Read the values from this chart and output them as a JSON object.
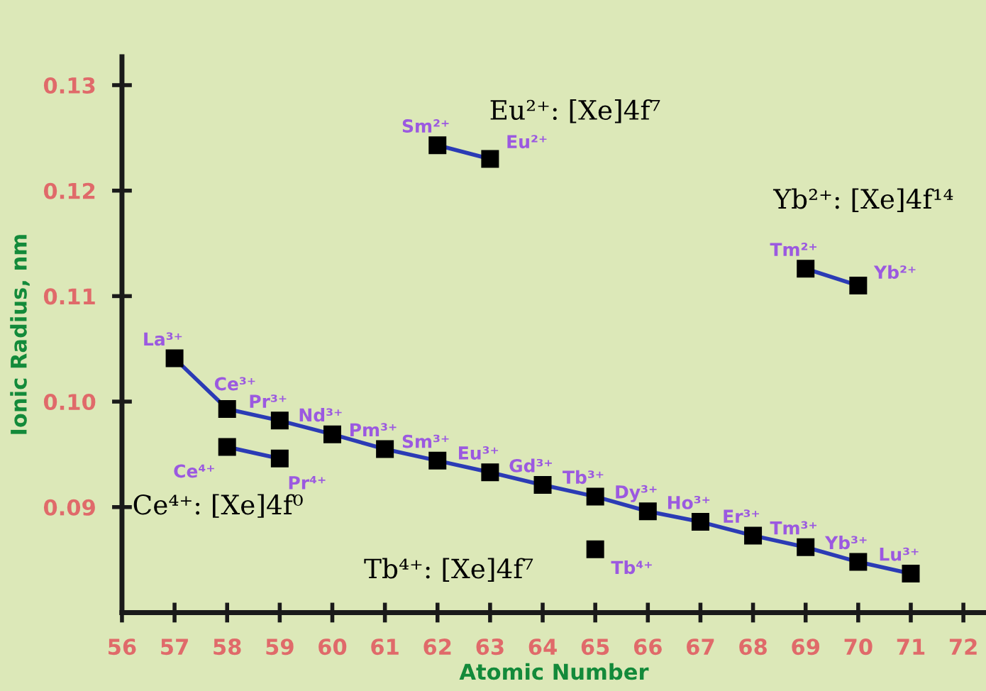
{
  "chart_data": {
    "type": "line",
    "xlabel": "Atomic Number",
    "ylabel": "Ionic Radius, nm",
    "xlim": [
      56,
      72.43
    ],
    "xticks": [
      56,
      57,
      58,
      59,
      60,
      61,
      62,
      63,
      64,
      65,
      66,
      67,
      68,
      69,
      70,
      71,
      72
    ],
    "ylim": [
      0.08,
      0.1327
    ],
    "yticks": [
      {
        "value": 0.09,
        "label": "0.09"
      },
      {
        "value": 0.1,
        "label": "0.10"
      },
      {
        "value": 0.11,
        "label": "0.11"
      },
      {
        "value": 0.12,
        "label": "0.12"
      },
      {
        "value": 0.13,
        "label": "0.13"
      }
    ],
    "grid": false,
    "legend": false,
    "marker": "square",
    "line_style": "solid",
    "series": [
      {
        "color": "#2b3bb5",
        "x": [
          57,
          58,
          59,
          60,
          61,
          62,
          63,
          64,
          65,
          66,
          67,
          68,
          69,
          70,
          71
        ],
        "values": [
          0.1041,
          0.0993,
          0.0982,
          0.0969,
          0.0955,
          0.0944,
          0.0933,
          0.0921,
          0.091,
          0.0896,
          0.0886,
          0.0873,
          0.0862,
          0.0848,
          0.0837
        ]
      },
      {
        "color": "#2b3bb5",
        "x": [
          58,
          59
        ],
        "values": [
          0.0957,
          0.0946
        ]
      },
      {
        "color": "#000000",
        "x": [
          65
        ],
        "values": [
          0.086
        ]
      },
      {
        "color": "#2b3bb5",
        "x": [
          62,
          63
        ],
        "values": [
          0.1243,
          0.123
        ]
      },
      {
        "color": "#2b3bb5",
        "x": [
          69,
          70
        ],
        "values": [
          0.1126,
          0.111
        ]
      }
    ],
    "annotations": [
      {
        "text": "La³⁺",
        "x": 57,
        "y": 0.1041
      },
      {
        "text": "Ce³⁺",
        "x": 58,
        "y": 0.0993
      },
      {
        "text": "Pr³⁺",
        "x": 59,
        "y": 0.0982
      },
      {
        "text": "Nd³⁺",
        "x": 60,
        "y": 0.0969
      },
      {
        "text": "Pm³⁺",
        "x": 61,
        "y": 0.0955
      },
      {
        "text": "Sm³⁺",
        "x": 62,
        "y": 0.0944
      },
      {
        "text": "Eu³⁺",
        "x": 63,
        "y": 0.0933
      },
      {
        "text": "Gd³⁺",
        "x": 64,
        "y": 0.0921
      },
      {
        "text": "Tb³⁺",
        "x": 65,
        "y": 0.091
      },
      {
        "text": "Dy³⁺",
        "x": 66,
        "y": 0.0896
      },
      {
        "text": "Ho³⁺",
        "x": 67,
        "y": 0.0886
      },
      {
        "text": "Er³⁺",
        "x": 68,
        "y": 0.0873
      },
      {
        "text": "Tm³⁺",
        "x": 69,
        "y": 0.0862
      },
      {
        "text": "Yb³⁺",
        "x": 70,
        "y": 0.0848
      },
      {
        "text": "Lu³⁺",
        "x": 71,
        "y": 0.0837
      },
      {
        "text": "Ce⁴⁺",
        "x": 58,
        "y": 0.0957
      },
      {
        "text": "Pr⁴⁺",
        "x": 59,
        "y": 0.0946
      },
      {
        "text": "Tb⁴⁺",
        "x": 65,
        "y": 0.086
      },
      {
        "text": "Sm²⁺",
        "x": 62,
        "y": 0.1243
      },
      {
        "text": "Eu²⁺",
        "x": 63,
        "y": 0.123
      },
      {
        "text": "Tm²⁺",
        "x": 69,
        "y": 0.1126
      },
      {
        "text": "Yb²⁺",
        "x": 70,
        "y": 0.111
      },
      "Eu²⁺: [Xe]4f⁷",
      "Yb²⁺: [Xe]4f¹⁴",
      "Ce⁴⁺: [Xe]4f⁰",
      "Tb⁴⁺: [Xe]4f⁷"
    ]
  }
}
